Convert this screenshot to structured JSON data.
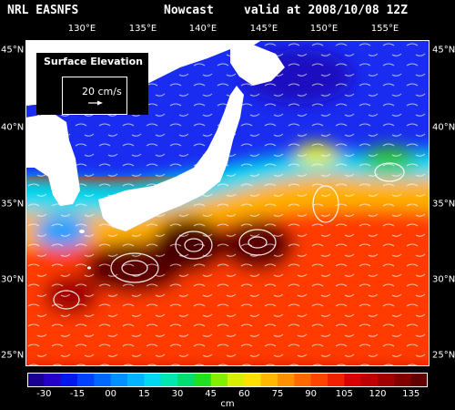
{
  "header": {
    "model": "NRL EASNFS",
    "product": "Nowcast",
    "valid": "valid at 2008/10/08 12Z"
  },
  "map": {
    "variable": "Surface Elevation",
    "lon_ticks": [
      "130°E",
      "135°E",
      "140°E",
      "145°E",
      "150°E",
      "155°E"
    ],
    "lat_ticks": [
      "45°N",
      "40°N",
      "35°N",
      "30°N",
      "25°N"
    ],
    "extent": {
      "lon": [
        127.5,
        159.5
      ],
      "lat": [
        23.0,
        45.5
      ]
    }
  },
  "vector_legend": {
    "speed_label": "20 cm/s"
  },
  "colorbar": {
    "tick_labels": [
      "-30",
      "-15",
      "00",
      "15",
      "30",
      "45",
      "60",
      "75",
      "90",
      "105",
      "120",
      "135"
    ],
    "unit": "cm",
    "colors": [
      "#1a0090",
      "#2400c8",
      "#0018f0",
      "#0040ff",
      "#0068ff",
      "#0090ff",
      "#00b4ff",
      "#00d8f0",
      "#00e8b0",
      "#00e070",
      "#20e020",
      "#80f000",
      "#d8f000",
      "#ffe000",
      "#ffb800",
      "#ff9000",
      "#ff6a00",
      "#ff4400",
      "#f02000",
      "#d80000",
      "#c00000",
      "#a00000",
      "#800000",
      "#600000"
    ]
  }
}
